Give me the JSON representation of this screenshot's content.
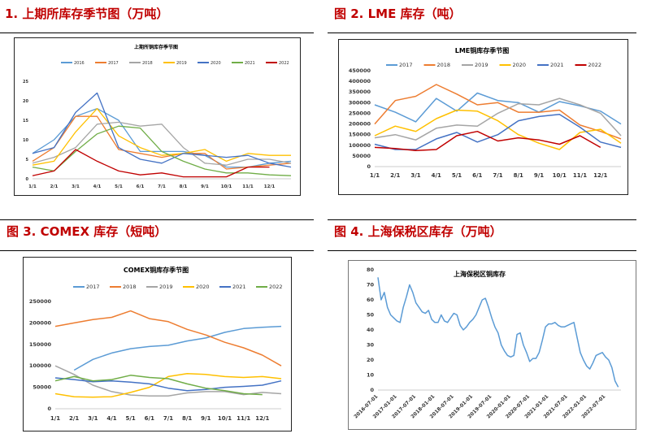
{
  "figures": [
    {
      "title": "1. 上期所库存季节图（万吨）"
    },
    {
      "title": "图 2. LME 库存（吨）"
    },
    {
      "title": "图 3. COMEX 库存（短吨）"
    },
    {
      "title": "图 4.  上海保税区库存（万吨）"
    }
  ],
  "chart_data": [
    {
      "type": "line",
      "title": "上期所铜库存季节图",
      "unit": "万吨",
      "xlabel": "",
      "ylabel": "",
      "x_ticks": [
        "1/1",
        "2/1",
        "3/1",
        "4/1",
        "5/1",
        "6/1",
        "7/1",
        "8/1",
        "9/1",
        "10/1",
        "11/1",
        "12/1"
      ],
      "y_ticks": [
        "0",
        "5",
        "10",
        "15",
        "20",
        "25"
      ],
      "ylim": [
        0,
        25
      ],
      "legend": "top",
      "x": [
        "1/1",
        "2/1",
        "3/1",
        "4/1",
        "5/1",
        "6/1",
        "7/1",
        "8/1",
        "9/1",
        "10/1",
        "11/1",
        "12/1",
        "12/31"
      ],
      "series": [
        {
          "name": "2016",
          "color": "#5b9bd5",
          "values": [
            6.5,
            10,
            16,
            18,
            15,
            7,
            7,
            7,
            6,
            3,
            3,
            4,
            4.5
          ]
        },
        {
          "name": "2017",
          "color": "#ed7d31",
          "values": [
            4.5,
            8,
            16,
            16,
            7.5,
            6.5,
            5.5,
            6.5,
            6.5,
            2.5,
            3,
            3.5,
            4
          ]
        },
        {
          "name": "2018",
          "color": "#a5a5a5",
          "values": [
            4,
            5.5,
            8,
            14,
            14.5,
            13.5,
            14,
            8,
            4,
            3.5,
            5,
            5,
            4
          ]
        },
        {
          "name": "2019",
          "color": "#ffc000",
          "values": [
            3.5,
            4.5,
            12,
            18,
            11,
            8,
            6,
            6.5,
            7.5,
            4.5,
            6.5,
            6,
            6
          ]
        },
        {
          "name": "2020",
          "color": "#4472c4",
          "values": [
            6.5,
            8,
            17,
            22,
            8,
            5,
            4,
            6.5,
            6,
            5.5,
            6,
            4,
            3
          ]
        },
        {
          "name": "2021",
          "color": "#70ad47",
          "values": [
            3,
            2,
            7,
            11.5,
            13.5,
            13,
            7,
            4.5,
            2.5,
            1.5,
            1.5,
            1,
            0.8
          ]
        },
        {
          "name": "2022",
          "color": "#c00000",
          "values": [
            0.8,
            2,
            7.5,
            4.5,
            2,
            1,
            1.5,
            0.5,
            0.5,
            0.5,
            3,
            3,
            null
          ]
        }
      ]
    },
    {
      "type": "line",
      "title": "LME铜库存季节图",
      "unit": "吨",
      "xlabel": "",
      "ylabel": "",
      "x_ticks": [
        "1/1",
        "2/1",
        "3/1",
        "4/1",
        "5/1",
        "6/1",
        "7/1",
        "8/1",
        "9/1",
        "10/1",
        "11/1",
        "12/1"
      ],
      "y_ticks": [
        "0",
        "50000",
        "100000",
        "150000",
        "200000",
        "250000",
        "300000",
        "350000",
        "400000",
        "450000"
      ],
      "ylim": [
        0,
        450000
      ],
      "legend": "top",
      "x": [
        "1/1",
        "2/1",
        "3/1",
        "4/1",
        "5/1",
        "6/1",
        "7/1",
        "8/1",
        "9/1",
        "10/1",
        "11/1",
        "12/1",
        "12/31"
      ],
      "series": [
        {
          "name": "2017",
          "color": "#5b9bd5",
          "values": [
            290000,
            255000,
            210000,
            320000,
            260000,
            345000,
            310000,
            300000,
            255000,
            305000,
            285000,
            260000,
            200000
          ]
        },
        {
          "name": "2018",
          "color": "#ed7d31",
          "values": [
            200000,
            310000,
            330000,
            385000,
            340000,
            290000,
            300000,
            255000,
            255000,
            265000,
            195000,
            165000,
            130000
          ]
        },
        {
          "name": "2019",
          "color": "#a5a5a5",
          "values": [
            135000,
            150000,
            125000,
            180000,
            195000,
            190000,
            250000,
            295000,
            290000,
            320000,
            290000,
            250000,
            145000
          ]
        },
        {
          "name": "2020",
          "color": "#ffc000",
          "values": [
            145000,
            190000,
            165000,
            225000,
            265000,
            260000,
            215000,
            150000,
            110000,
            80000,
            160000,
            175000,
            110000
          ]
        },
        {
          "name": "2021",
          "color": "#4472c4",
          "values": [
            105000,
            80000,
            80000,
            130000,
            160000,
            115000,
            150000,
            215000,
            235000,
            245000,
            185000,
            115000,
            90000
          ]
        },
        {
          "name": "2022",
          "color": "#c00000",
          "values": [
            90000,
            85000,
            75000,
            80000,
            145000,
            165000,
            120000,
            135000,
            125000,
            105000,
            145000,
            90000,
            null
          ]
        }
      ]
    },
    {
      "type": "line",
      "title": "COMEX铜库存季节图",
      "unit": "短吨",
      "xlabel": "",
      "ylabel": "",
      "x_ticks": [
        "1/1",
        "2/1",
        "3/1",
        "4/1",
        "5/1",
        "6/1",
        "7/1",
        "8/1",
        "9/1",
        "10/1",
        "11/1",
        "12/1"
      ],
      "y_ticks": [
        "0",
        "50000",
        "100000",
        "150000",
        "200000",
        "250000"
      ],
      "ylim": [
        0,
        250000
      ],
      "legend": "top",
      "x": [
        "1/1",
        "2/1",
        "3/1",
        "4/1",
        "5/1",
        "6/1",
        "7/1",
        "8/1",
        "9/1",
        "10/1",
        "11/1",
        "12/1",
        "12/31"
      ],
      "series": [
        {
          "name": "2017",
          "color": "#5b9bd5",
          "values": [
            null,
            90000,
            115000,
            130000,
            140000,
            145000,
            148000,
            158000,
            165000,
            178000,
            187000,
            190000,
            192000
          ]
        },
        {
          "name": "2018",
          "color": "#ed7d31",
          "values": [
            192000,
            200000,
            208000,
            213000,
            228000,
            210000,
            203000,
            185000,
            172000,
            155000,
            142000,
            125000,
            100000
          ]
        },
        {
          "name": "2019",
          "color": "#a5a5a5",
          "values": [
            100000,
            80000,
            55000,
            40000,
            32000,
            30000,
            30000,
            37000,
            40000,
            40000,
            33000,
            38000,
            35000
          ]
        },
        {
          "name": "2020",
          "color": "#ffc000",
          "values": [
            35000,
            28000,
            27000,
            28000,
            38000,
            50000,
            75000,
            82000,
            80000,
            75000,
            73000,
            75000,
            70000
          ]
        },
        {
          "name": "2021",
          "color": "#4472c4",
          "values": [
            72000,
            68000,
            63000,
            65000,
            62000,
            58000,
            48000,
            42000,
            45000,
            50000,
            52000,
            55000,
            65000
          ]
        },
        {
          "name": "2022",
          "color": "#70ad47",
          "values": [
            65000,
            75000,
            65000,
            68000,
            78000,
            73000,
            70000,
            58000,
            48000,
            42000,
            35000,
            33000,
            null
          ]
        }
      ]
    },
    {
      "type": "line",
      "title": "上海保税区铜库存",
      "unit": "万吨",
      "xlabel": "",
      "ylabel": "",
      "x_ticks": [
        "2016-07-01",
        "2017-01-01",
        "2017-07-01",
        "2018-01-01",
        "2018-07-01",
        "2019-01-01",
        "2019-07-01",
        "2020-01-01",
        "2020-07-01",
        "2021-01-01",
        "2021-07-01",
        "2022-01-01",
        "2022-07-01"
      ],
      "y_ticks": [
        "0",
        "10",
        "20",
        "30",
        "40",
        "50",
        "60",
        "70",
        "80"
      ],
      "ylim": [
        0,
        80
      ],
      "x_start": "2016-07",
      "x_step": "month",
      "series": [
        {
          "name": "上海保税区铜库存",
          "color": "#5b9bd5",
          "values": [
            75,
            60,
            65,
            55,
            50,
            48,
            46,
            45,
            55,
            62,
            70,
            65,
            58,
            55,
            52,
            51,
            53,
            47,
            45,
            45,
            50,
            46,
            45,
            48,
            51,
            50,
            43,
            40,
            42,
            45,
            47,
            50,
            55,
            60,
            61,
            55,
            48,
            42,
            38,
            30,
            26,
            23,
            22,
            23,
            37,
            38,
            30,
            25,
            19,
            21,
            21,
            25,
            33,
            42,
            44,
            44,
            45,
            43,
            42,
            42,
            43,
            44,
            45,
            35,
            25,
            20,
            16,
            14,
            18,
            23,
            24,
            25,
            22,
            20,
            15,
            6,
            2
          ]
        }
      ]
    }
  ]
}
